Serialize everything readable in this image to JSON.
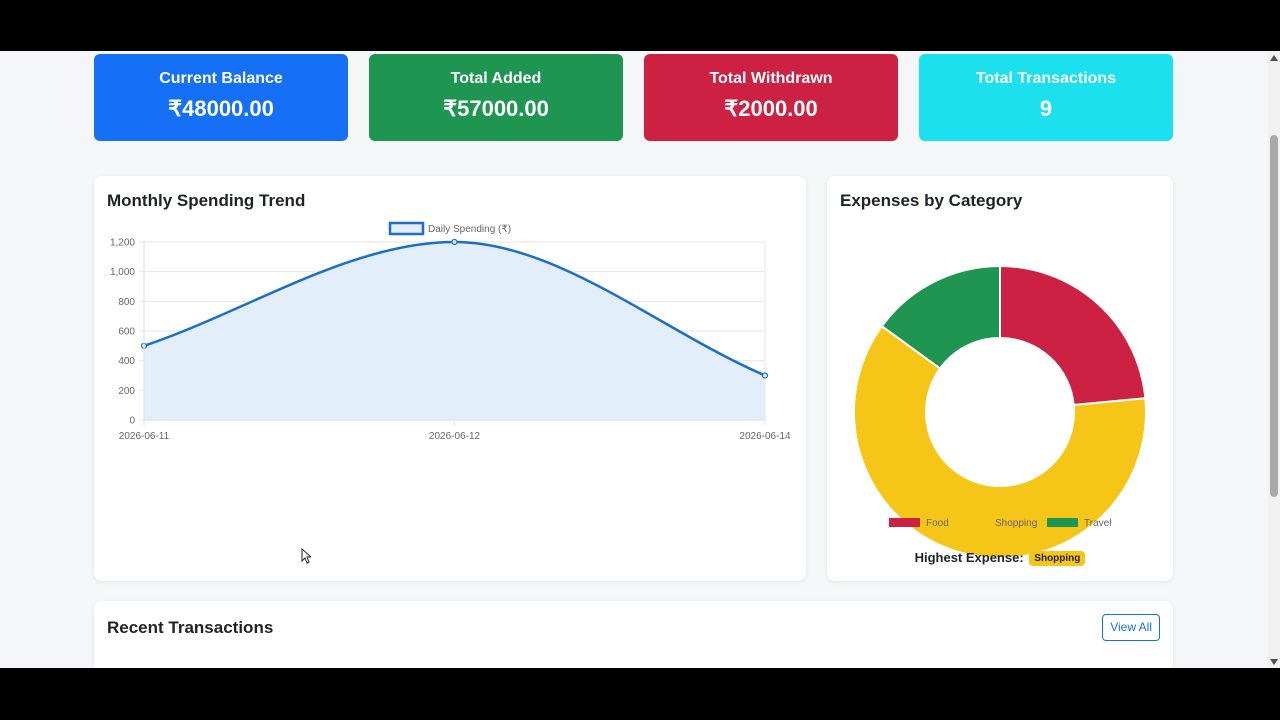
{
  "stats": [
    {
      "label": "Current Balance",
      "value": "₹48000.00",
      "color": "#1670f6"
    },
    {
      "label": "Total Added",
      "value": "₹57000.00",
      "color": "#1e9651"
    },
    {
      "label": "Total Withdrawn",
      "value": "₹2000.00",
      "color": "#cc2143"
    },
    {
      "label": "Total Transactions",
      "value": "9",
      "color": "#1ce0ee"
    }
  ],
  "trend": {
    "title": "Monthly Spending Trend",
    "chart_data": {
      "type": "line",
      "x": [
        "2026-06-11",
        "2026-06-12",
        "2026-06-14"
      ],
      "series": [
        {
          "name": "Daily Spending (₹)",
          "values": [
            500,
            1200,
            300
          ],
          "color": "#1c6ec8",
          "fill": "#e3eefb"
        }
      ],
      "ylim": [
        0,
        1200
      ],
      "yticks": [
        0,
        200,
        400,
        600,
        800,
        1000,
        1200
      ],
      "ytick_labels": [
        "0",
        "200",
        "400",
        "600",
        "800",
        "1,000",
        "1,200"
      ],
      "grid": true,
      "legend": "top"
    }
  },
  "category": {
    "title": "Expenses by Category",
    "chart_data": {
      "type": "pie",
      "categories": [
        "Food",
        "Shopping",
        "Travel"
      ],
      "values": [
        23.5,
        61.5,
        15
      ],
      "colors": [
        "#cc2143",
        "#f5c518",
        "#1e9651"
      ],
      "legend": "bottom"
    },
    "highest_label": "Highest Expense:",
    "highest_value": "Shopping"
  },
  "recent": {
    "title": "Recent Transactions",
    "view_all": "View All"
  }
}
